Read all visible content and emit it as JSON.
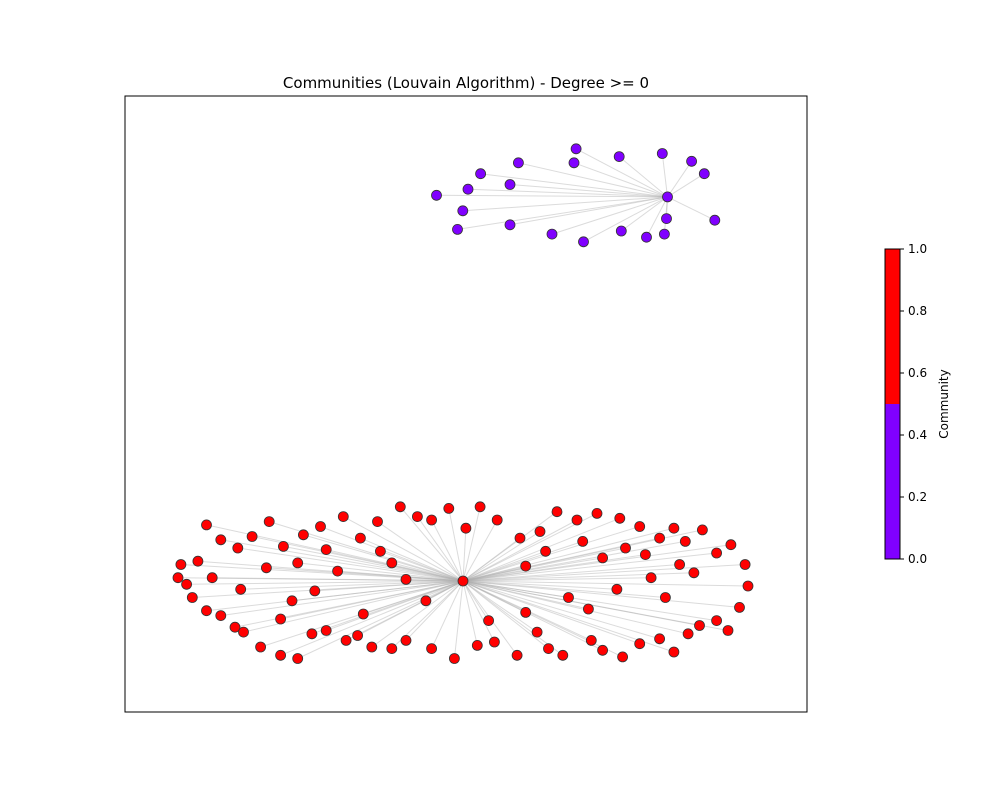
{
  "chart_data": {
    "type": "network",
    "title": "Communities (Louvain Algorithm) - Degree >= 0",
    "colors": {
      "community_0": "#8000ff",
      "community_1": "#ff0000",
      "node_edge": "#333333",
      "edge": "#b0b0b0"
    },
    "communities": [
      {
        "id": 0,
        "color_value": 0.0,
        "hub": [
          0.9,
          0.02
        ],
        "leaves": [
          [
            -1.0,
            0.07
          ],
          [
            -0.88,
            0.17
          ],
          [
            -0.52,
            0.24
          ],
          [
            0.03,
            0.33
          ],
          [
            0.01,
            0.24
          ],
          [
            0.44,
            0.28
          ],
          [
            0.85,
            0.3
          ],
          [
            1.13,
            0.25
          ],
          [
            1.25,
            0.17
          ],
          [
            1.35,
            -0.13
          ],
          [
            0.89,
            -0.12
          ],
          [
            0.7,
            -0.24
          ],
          [
            0.87,
            -0.22
          ],
          [
            0.46,
            -0.2
          ],
          [
            0.1,
            -0.27
          ],
          [
            -0.2,
            -0.22
          ],
          [
            -0.6,
            -0.16
          ],
          [
            -1.1,
            -0.19
          ],
          [
            -1.05,
            -0.07
          ],
          [
            -1.3,
            0.03
          ],
          [
            -0.6,
            0.1
          ]
        ]
      },
      {
        "id": 1,
        "color_value": 1.0,
        "hub": [
          0.0,
          0.0
        ],
        "leaves": [
          [
            -1.0,
            0.02
          ],
          [
            -0.99,
            0.1
          ],
          [
            -0.95,
            -0.1
          ],
          [
            -0.9,
            -0.18
          ],
          [
            -0.85,
            -0.21
          ],
          [
            -0.8,
            -0.28
          ],
          [
            -0.77,
            -0.31
          ],
          [
            -0.71,
            -0.4
          ],
          [
            -0.64,
            -0.45
          ],
          [
            -0.58,
            -0.47
          ],
          [
            -0.53,
            -0.32
          ],
          [
            -0.48,
            -0.3
          ],
          [
            -0.41,
            -0.36
          ],
          [
            -0.37,
            -0.33
          ],
          [
            -0.32,
            -0.4
          ],
          [
            -0.25,
            -0.41
          ],
          [
            -0.2,
            -0.36
          ],
          [
            -0.11,
            -0.41
          ],
          [
            -0.03,
            -0.47
          ],
          [
            0.05,
            -0.39
          ],
          [
            0.11,
            -0.37
          ],
          [
            0.19,
            -0.45
          ],
          [
            0.26,
            -0.31
          ],
          [
            0.3,
            -0.41
          ],
          [
            0.35,
            -0.45
          ],
          [
            0.45,
            -0.36
          ],
          [
            0.49,
            -0.42
          ],
          [
            0.56,
            -0.46
          ],
          [
            0.62,
            -0.38
          ],
          [
            0.69,
            -0.35
          ],
          [
            0.74,
            -0.43
          ],
          [
            0.79,
            -0.32
          ],
          [
            0.83,
            -0.27
          ],
          [
            0.89,
            -0.24
          ],
          [
            0.93,
            -0.3
          ],
          [
            0.97,
            -0.16
          ],
          [
            1.0,
            -0.03
          ],
          [
            0.99,
            0.1
          ],
          [
            0.94,
            0.22
          ],
          [
            0.89,
            0.17
          ],
          [
            0.84,
            0.31
          ],
          [
            0.78,
            0.24
          ],
          [
            0.74,
            0.32
          ],
          [
            0.69,
            0.26
          ],
          [
            0.62,
            0.33
          ],
          [
            0.55,
            0.38
          ],
          [
            0.47,
            0.41
          ],
          [
            0.4,
            0.37
          ],
          [
            0.33,
            0.42
          ],
          [
            0.27,
            0.3
          ],
          [
            0.2,
            0.26
          ],
          [
            0.12,
            0.37
          ],
          [
            0.06,
            0.45
          ],
          [
            0.01,
            0.32
          ],
          [
            -0.05,
            0.44
          ],
          [
            -0.11,
            0.37
          ],
          [
            -0.16,
            0.39
          ],
          [
            -0.22,
            0.45
          ],
          [
            -0.3,
            0.36
          ],
          [
            -0.36,
            0.26
          ],
          [
            -0.42,
            0.39
          ],
          [
            -0.5,
            0.33
          ],
          [
            -0.56,
            0.28
          ],
          [
            -0.63,
            0.21
          ],
          [
            -0.68,
            0.36
          ],
          [
            -0.74,
            0.27
          ],
          [
            -0.79,
            0.2
          ],
          [
            -0.85,
            0.25
          ],
          [
            -0.9,
            0.34
          ],
          [
            -0.93,
            0.12
          ],
          [
            -0.97,
            -0.02
          ],
          [
            -0.44,
            0.06
          ],
          [
            -0.2,
            0.01
          ],
          [
            -0.25,
            0.11
          ],
          [
            0.22,
            0.09
          ],
          [
            0.44,
            -0.17
          ],
          [
            0.37,
            -0.1
          ],
          [
            -0.6,
            -0.12
          ],
          [
            -0.69,
            0.08
          ],
          [
            -0.78,
            -0.05
          ],
          [
            0.54,
            -0.05
          ],
          [
            0.71,
            -0.1
          ],
          [
            0.81,
            0.05
          ],
          [
            0.49,
            0.14
          ],
          [
            0.64,
            0.16
          ],
          [
            -0.13,
            -0.12
          ],
          [
            0.09,
            -0.24
          ],
          [
            -0.35,
            -0.2
          ],
          [
            0.22,
            -0.19
          ],
          [
            -0.64,
            -0.23
          ],
          [
            -0.29,
            0.18
          ],
          [
            0.29,
            0.18
          ],
          [
            0.42,
            0.24
          ],
          [
            0.57,
            0.2
          ],
          [
            0.76,
            0.1
          ],
          [
            0.66,
            0.02
          ],
          [
            -0.52,
            -0.06
          ],
          [
            -0.88,
            0.02
          ],
          [
            -0.48,
            0.19
          ],
          [
            -0.58,
            0.11
          ]
        ]
      }
    ],
    "colorbar": {
      "label": "Community",
      "range": [
        0.0,
        1.0
      ],
      "ticks": [
        "0.0",
        "0.2",
        "0.4",
        "0.6",
        "0.8",
        "1.0"
      ],
      "tick_values": [
        0.0,
        0.2,
        0.4,
        0.6,
        0.8,
        1.0
      ],
      "split_value": 0.5
    },
    "grid": false,
    "axes_ticks": false
  }
}
